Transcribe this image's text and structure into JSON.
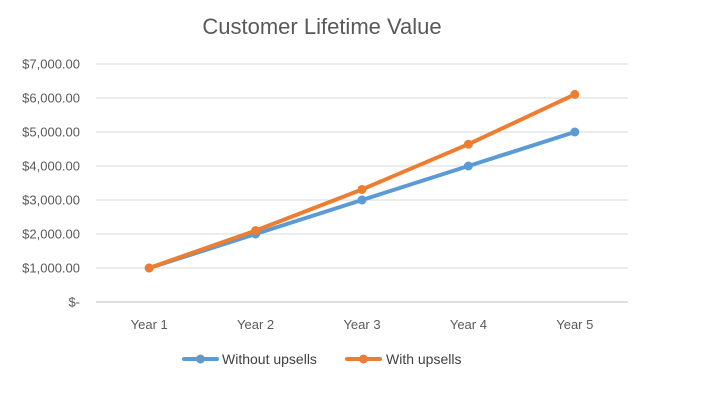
{
  "chart_data": {
    "type": "line",
    "title": "Customer Lifetime Value",
    "xlabel": "",
    "ylabel": "",
    "categories": [
      "Year 1",
      "Year 2",
      "Year 3",
      "Year 4",
      "Year 5"
    ],
    "y_ticks": [
      {
        "value": 0,
        "label": "$-"
      },
      {
        "value": 1000,
        "label": "$1,000.00"
      },
      {
        "value": 2000,
        "label": "$2,000.00"
      },
      {
        "value": 3000,
        "label": "$3,000.00"
      },
      {
        "value": 4000,
        "label": "$4,000.00"
      },
      {
        "value": 5000,
        "label": "$5,000.00"
      },
      {
        "value": 6000,
        "label": "$6,000.00"
      },
      {
        "value": 7000,
        "label": "$7,000.00"
      }
    ],
    "ylim": [
      0,
      7000
    ],
    "grid": true,
    "legend_position": "bottom",
    "series": [
      {
        "name": "Without upsells",
        "color": "#5b9bd5",
        "values": [
          1000,
          2000,
          3000,
          4000,
          5000
        ]
      },
      {
        "name": "With upsells",
        "color": "#ed7d31",
        "values": [
          1000,
          2100,
          3310,
          4641,
          6105
        ]
      }
    ]
  }
}
